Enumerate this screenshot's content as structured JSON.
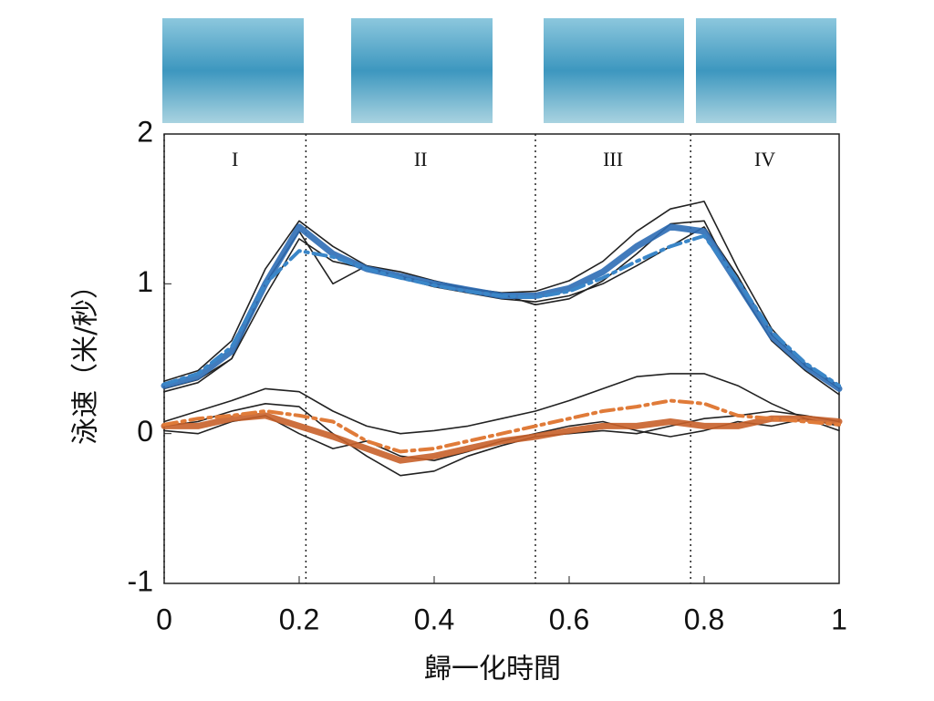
{
  "chart_data": {
    "type": "line",
    "xlabel": "歸一化時間",
    "ylabel": "泳速（米/秒）",
    "xlim": [
      0,
      1
    ],
    "ylim": [
      -1,
      2
    ],
    "xticks": [
      0,
      0.2,
      0.4,
      0.6,
      0.8,
      1
    ],
    "yticks": [
      -1,
      0,
      1,
      2
    ],
    "phase_boundaries": [
      0,
      0.21,
      0.55,
      0.78
    ],
    "phase_labels": [
      "I",
      "II",
      "III",
      "IV"
    ],
    "x": [
      0,
      0.05,
      0.1,
      0.15,
      0.2,
      0.25,
      0.3,
      0.35,
      0.4,
      0.45,
      0.5,
      0.55,
      0.6,
      0.65,
      0.7,
      0.75,
      0.8,
      0.85,
      0.9,
      0.95,
      1
    ],
    "series": [
      {
        "color": "#222222",
        "style": "thin",
        "values": [
          0.3,
          0.36,
          0.5,
          0.92,
          1.3,
          1.15,
          1.1,
          1.05,
          1.0,
          0.97,
          0.94,
          0.95,
          1.02,
          1.15,
          1.35,
          1.5,
          1.55,
          1.1,
          0.7,
          0.45,
          0.32
        ]
      },
      {
        "color": "#222222",
        "style": "thin",
        "values": [
          0.35,
          0.42,
          0.62,
          1.1,
          1.42,
          1.25,
          1.12,
          1.04,
          0.98,
          0.94,
          0.9,
          0.88,
          0.92,
          1.0,
          1.12,
          1.25,
          1.38,
          1.05,
          0.66,
          0.46,
          0.3
        ]
      },
      {
        "color": "#222222",
        "style": "thin",
        "values": [
          0.28,
          0.34,
          0.5,
          1.0,
          1.35,
          1.0,
          1.12,
          1.08,
          1.02,
          0.97,
          0.93,
          0.86,
          0.9,
          1.02,
          1.2,
          1.4,
          1.42,
          0.98,
          0.62,
          0.42,
          0.26
        ]
      },
      {
        "color": "#2e6db5",
        "style": "thick",
        "values": [
          0.32,
          0.38,
          0.55,
          1.0,
          1.38,
          1.2,
          1.1,
          1.05,
          1.0,
          0.96,
          0.92,
          0.92,
          0.97,
          1.08,
          1.25,
          1.38,
          1.35,
          1.0,
          0.65,
          0.45,
          0.3
        ]
      },
      {
        "color": "#3a86c8",
        "style": "dashdot",
        "values": [
          0.33,
          0.4,
          0.58,
          1.0,
          1.22,
          1.18,
          1.1,
          1.04,
          0.99,
          0.95,
          0.92,
          0.91,
          0.95,
          1.04,
          1.15,
          1.25,
          1.32,
          1.02,
          0.68,
          0.47,
          0.32
        ]
      },
      {
        "color": "#222222",
        "style": "thin",
        "values": [
          0.08,
          0.15,
          0.22,
          0.3,
          0.28,
          0.15,
          0.05,
          0.0,
          0.02,
          0.05,
          0.1,
          0.15,
          0.22,
          0.3,
          0.38,
          0.4,
          0.4,
          0.32,
          0.2,
          0.1,
          0.05
        ]
      },
      {
        "color": "#222222",
        "style": "thin",
        "values": [
          0.05,
          0.08,
          0.15,
          0.2,
          0.18,
          0.0,
          -0.15,
          -0.28,
          -0.25,
          -0.15,
          -0.08,
          -0.02,
          0.0,
          0.02,
          0.0,
          0.05,
          0.1,
          0.12,
          0.15,
          0.12,
          0.08
        ]
      },
      {
        "color": "#222222",
        "style": "thin",
        "values": [
          0.02,
          0.0,
          0.08,
          0.12,
          0.0,
          -0.1,
          -0.05,
          -0.15,
          -0.18,
          -0.12,
          -0.05,
          0.0,
          0.05,
          0.08,
          0.02,
          -0.02,
          0.02,
          0.08,
          0.05,
          0.1,
          0.02
        ]
      },
      {
        "color": "#c8602a",
        "style": "thick",
        "values": [
          0.05,
          0.05,
          0.1,
          0.12,
          0.05,
          -0.02,
          -0.1,
          -0.18,
          -0.15,
          -0.1,
          -0.05,
          -0.02,
          0.02,
          0.05,
          0.05,
          0.08,
          0.05,
          0.05,
          0.1,
          0.1,
          0.08
        ]
      },
      {
        "color": "#e07b39",
        "style": "dashdot",
        "values": [
          0.06,
          0.1,
          0.12,
          0.15,
          0.12,
          0.08,
          -0.05,
          -0.12,
          -0.1,
          -0.05,
          0.0,
          0.05,
          0.1,
          0.15,
          0.18,
          0.22,
          0.2,
          0.12,
          0.1,
          0.08,
          0.06
        ]
      }
    ]
  }
}
